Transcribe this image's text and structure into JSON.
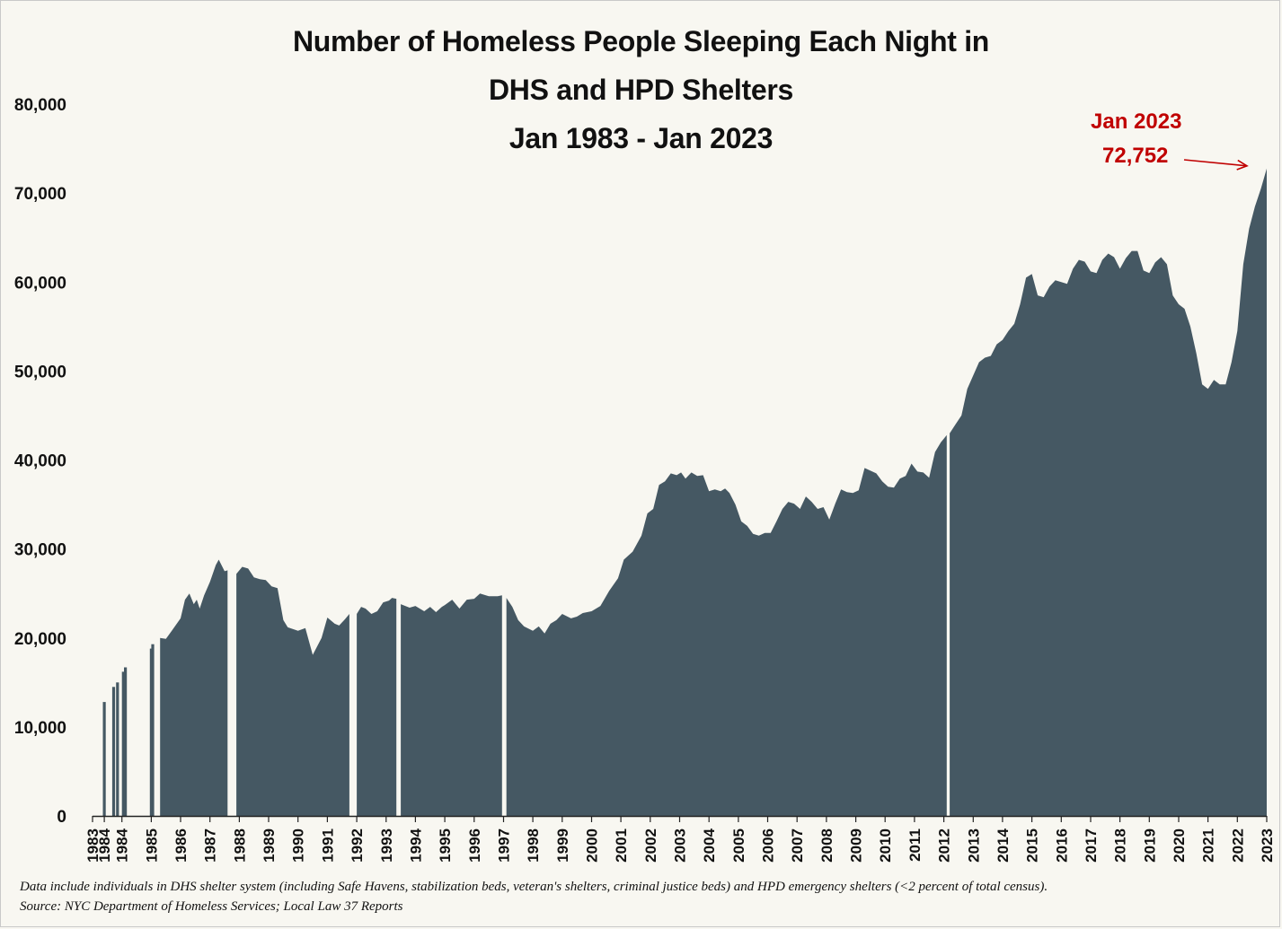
{
  "chart_data": {
    "type": "area",
    "title_lines": [
      "Number of Homeless People Sleeping Each Night in",
      "DHS and HPD Shelters",
      "Jan 1983 - Jan 2023"
    ],
    "xlabel": "",
    "ylabel": "",
    "ylim": [
      0,
      80000
    ],
    "xlim": [
      1983.0,
      2023.0
    ],
    "y_ticks": [
      0,
      10000,
      20000,
      30000,
      40000,
      50000,
      60000,
      70000,
      80000
    ],
    "y_tick_labels": [
      "0",
      "10,000",
      "20,000",
      "30,000",
      "40,000",
      "50,000",
      "60,000",
      "70,000",
      "80,000"
    ],
    "x_tick_labels": [
      "1983",
      "1984",
      "1984",
      "1985",
      "1986",
      "1987",
      "1988",
      "1989",
      "1990",
      "1991",
      "1992",
      "1993",
      "1994",
      "1995",
      "1996",
      "1997",
      "1998",
      "1999",
      "2000",
      "2001",
      "2002",
      "2003",
      "2004",
      "2005",
      "2006",
      "2007",
      "2008",
      "2009",
      "2010",
      "2011",
      "2012",
      "2013",
      "2014",
      "2015",
      "2016",
      "2017",
      "2018",
      "2019",
      "2020",
      "2021",
      "2022",
      "2023"
    ],
    "x_tick_years": [
      1983.0,
      1983.4,
      1984.0,
      1985.0,
      1986.0,
      1987.0,
      1988.0,
      1989.0,
      1990.0,
      1991.0,
      1992.0,
      1993.0,
      1994.0,
      1995.0,
      1996.0,
      1997.0,
      1998.0,
      1999.0,
      2000.0,
      2001.0,
      2002.0,
      2003.0,
      2004.0,
      2005.0,
      2006.0,
      2007.0,
      2008.0,
      2009.0,
      2010.0,
      2011.0,
      2012.0,
      2013.0,
      2014.0,
      2015.0,
      2016.0,
      2017.0,
      2018.0,
      2019.0,
      2020.0,
      2021.0,
      2022.0,
      2023.0
    ],
    "gridlines": false,
    "fill_color": "#455863",
    "early_bars": [
      {
        "x": 1983.4,
        "y": 12800
      },
      {
        "x": 1983.72,
        "y": 14500
      },
      {
        "x": 1983.85,
        "y": 15000
      },
      {
        "x": 1984.05,
        "y": 16200
      },
      {
        "x": 1984.12,
        "y": 16700
      },
      {
        "x": 1985.0,
        "y": 18800
      },
      {
        "x": 1985.05,
        "y": 19300
      }
    ],
    "segments": [
      {
        "x": [
          1985.3,
          1985.5,
          1985.7,
          1986.0,
          1986.15,
          1986.3,
          1986.45,
          1986.55,
          1986.65,
          1986.8,
          1987.0,
          1987.2,
          1987.3,
          1987.5,
          1987.6
        ],
        "y": [
          20000,
          19900,
          20800,
          22200,
          24300,
          25000,
          23800,
          24300,
          23300,
          24800,
          26300,
          28200,
          28800,
          27500,
          27600
        ]
      },
      {
        "x": [
          1987.9,
          1988.1,
          1988.3,
          1988.5,
          1988.7,
          1988.9,
          1989.1,
          1989.3,
          1989.5,
          1989.65,
          1990.0,
          1990.25,
          1990.5,
          1990.8,
          1991.0,
          1991.25,
          1991.4,
          1991.6,
          1991.75
        ],
        "y": [
          27200,
          28000,
          27800,
          26800,
          26600,
          26500,
          25800,
          25600,
          22000,
          21200,
          20800,
          21100,
          18100,
          20000,
          22300,
          21600,
          21400,
          22100,
          22700
        ]
      },
      {
        "x": [
          1992.0,
          1992.15,
          1992.3,
          1992.5,
          1992.7,
          1992.9,
          1993.1,
          1993.2,
          1993.35
        ],
        "y": [
          22700,
          23500,
          23300,
          22700,
          23000,
          24000,
          24200,
          24500,
          24400
        ]
      },
      {
        "x": [
          1993.5,
          1993.8,
          1994.0,
          1994.3,
          1994.5,
          1994.7,
          1994.9,
          1995.0,
          1995.25,
          1995.5,
          1995.75,
          1996.0,
          1996.2,
          1996.5,
          1996.8,
          1996.95
        ],
        "y": [
          23800,
          23400,
          23600,
          23000,
          23500,
          22900,
          23500,
          23700,
          24300,
          23300,
          24300,
          24400,
          25000,
          24700,
          24700,
          24800
        ]
      },
      {
        "x": [
          1997.1,
          1997.3,
          1997.5,
          1997.7,
          1998.0,
          1998.2,
          1998.4,
          1998.6,
          1998.8,
          1999.0,
          1999.3,
          1999.5,
          1999.7,
          2000.0,
          2000.3,
          2000.6,
          2000.9,
          2001.1,
          2001.4,
          2001.7,
          2001.9,
          2002.1,
          2002.3,
          2002.5,
          2002.7,
          2002.9,
          2003.05,
          2003.2,
          2003.4,
          2003.6,
          2003.8,
          2004.0,
          2004.2,
          2004.4,
          2004.55,
          2004.7,
          2004.9,
          2005.1,
          2005.3,
          2005.5,
          2005.7,
          2005.9,
          2006.1,
          2006.3,
          2006.5,
          2006.7,
          2006.9,
          2007.1,
          2007.3,
          2007.5,
          2007.7,
          2007.9,
          2008.1,
          2008.3,
          2008.5,
          2008.7,
          2008.9,
          2009.1,
          2009.3,
          2009.5,
          2009.7,
          2009.9,
          2010.1,
          2010.3,
          2010.5,
          2010.7,
          2010.9,
          2011.1,
          2011.3,
          2011.5,
          2011.7,
          2011.9,
          2012.0,
          2012.1
        ],
        "y": [
          24500,
          23500,
          22000,
          21300,
          20800,
          21300,
          20500,
          21600,
          22000,
          22700,
          22200,
          22400,
          22800,
          23000,
          23600,
          25300,
          26700,
          28800,
          29700,
          31500,
          34000,
          34500,
          37200,
          37600,
          38500,
          38300,
          38600,
          37900,
          38600,
          38200,
          38300,
          36500,
          36700,
          36500,
          36800,
          36300,
          35000,
          33100,
          32600,
          31700,
          31500,
          31800,
          31800,
          33100,
          34500,
          35300,
          35100,
          34500,
          35900,
          35300,
          34500,
          34700,
          33300,
          35100,
          36700,
          36400,
          36300,
          36600,
          39100,
          38800,
          38500,
          37600,
          37000,
          36900,
          37900,
          38200,
          39600,
          38700,
          38600,
          38000,
          40900,
          42000,
          42400,
          42800
        ]
      },
      {
        "x": [
          2012.2,
          2012.4,
          2012.6,
          2012.8,
          2013.0,
          2013.2,
          2013.4,
          2013.6,
          2013.8,
          2014.0,
          2014.2,
          2014.4,
          2014.6,
          2014.8,
          2015.0,
          2015.2,
          2015.4,
          2015.6,
          2015.8,
          2016.0,
          2016.2,
          2016.4,
          2016.6,
          2016.8,
          2017.0,
          2017.2,
          2017.4,
          2017.6,
          2017.8,
          2018.0,
          2018.2,
          2018.4,
          2018.6,
          2018.8,
          2019.0,
          2019.2,
          2019.4,
          2019.6,
          2019.8,
          2020.0,
          2020.2,
          2020.4,
          2020.6,
          2020.8,
          2021.0,
          2021.2,
          2021.4,
          2021.6,
          2021.8,
          2022.0,
          2022.2,
          2022.4,
          2022.6,
          2022.8,
          2023.0
        ],
        "y": [
          43000,
          44000,
          45000,
          48000,
          49500,
          51000,
          51500,
          51700,
          53000,
          53500,
          54500,
          55300,
          57500,
          60500,
          60900,
          58500,
          58300,
          59500,
          60200,
          60000,
          59800,
          61500,
          62500,
          62300,
          61200,
          61000,
          62500,
          63200,
          62800,
          61500,
          62700,
          63500,
          63500,
          61300,
          61000,
          62200,
          62800,
          62000,
          58500,
          57500,
          57000,
          55000,
          52000,
          48500,
          48000,
          49000,
          48500,
          48500,
          51000,
          54500,
          62000,
          66000,
          68500,
          70500,
          72752
        ]
      }
    ],
    "annotation": {
      "line1": "Jan 2023",
      "line2": "72,752",
      "x": 2023.0,
      "y": 72752
    },
    "notes": [
      "Data include individuals in DHS shelter system (including Safe Havens, stabilization beds, veteran's shelters, criminal justice beds) and HPD emergency shelters (<2 percent of total census).",
      "Source:  NYC Department of Homeless Services; Local Law 37 Reports"
    ]
  }
}
